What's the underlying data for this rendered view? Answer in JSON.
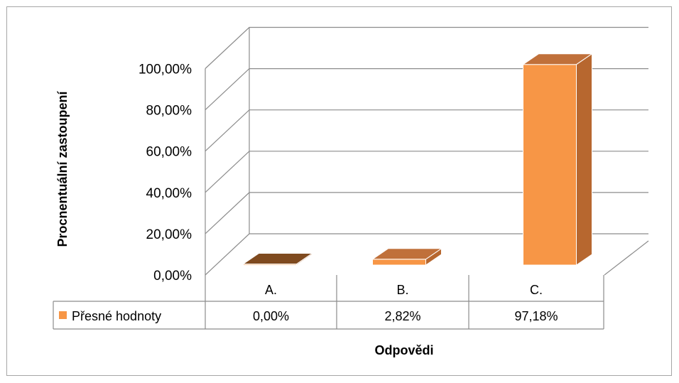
{
  "chart_data": {
    "type": "bar",
    "categories": [
      "A.",
      "B.",
      "C."
    ],
    "series": [
      {
        "name": "Přesné hodnoty",
        "values": [
          0.0,
          2.82,
          97.18
        ],
        "value_labels": [
          "0,00%",
          "2,82%",
          "97,18%"
        ]
      }
    ],
    "ylabel": "Procnentuální zastoupení",
    "xlabel": "Odpovědi",
    "ylim": [
      0,
      100
    ],
    "y_ticks": [
      "0,00%",
      "20,00%",
      "40,00%",
      "60,00%",
      "80,00%",
      "100,00%"
    ],
    "grid": true,
    "legend": "data-table",
    "three_d": true,
    "colors": {
      "bar_front": "#f79646",
      "bar_side": "#b7672f",
      "bar_top": "#c0703a",
      "bar_dark_top": "#7f4a1f",
      "grid": "#8c8c8c"
    }
  }
}
